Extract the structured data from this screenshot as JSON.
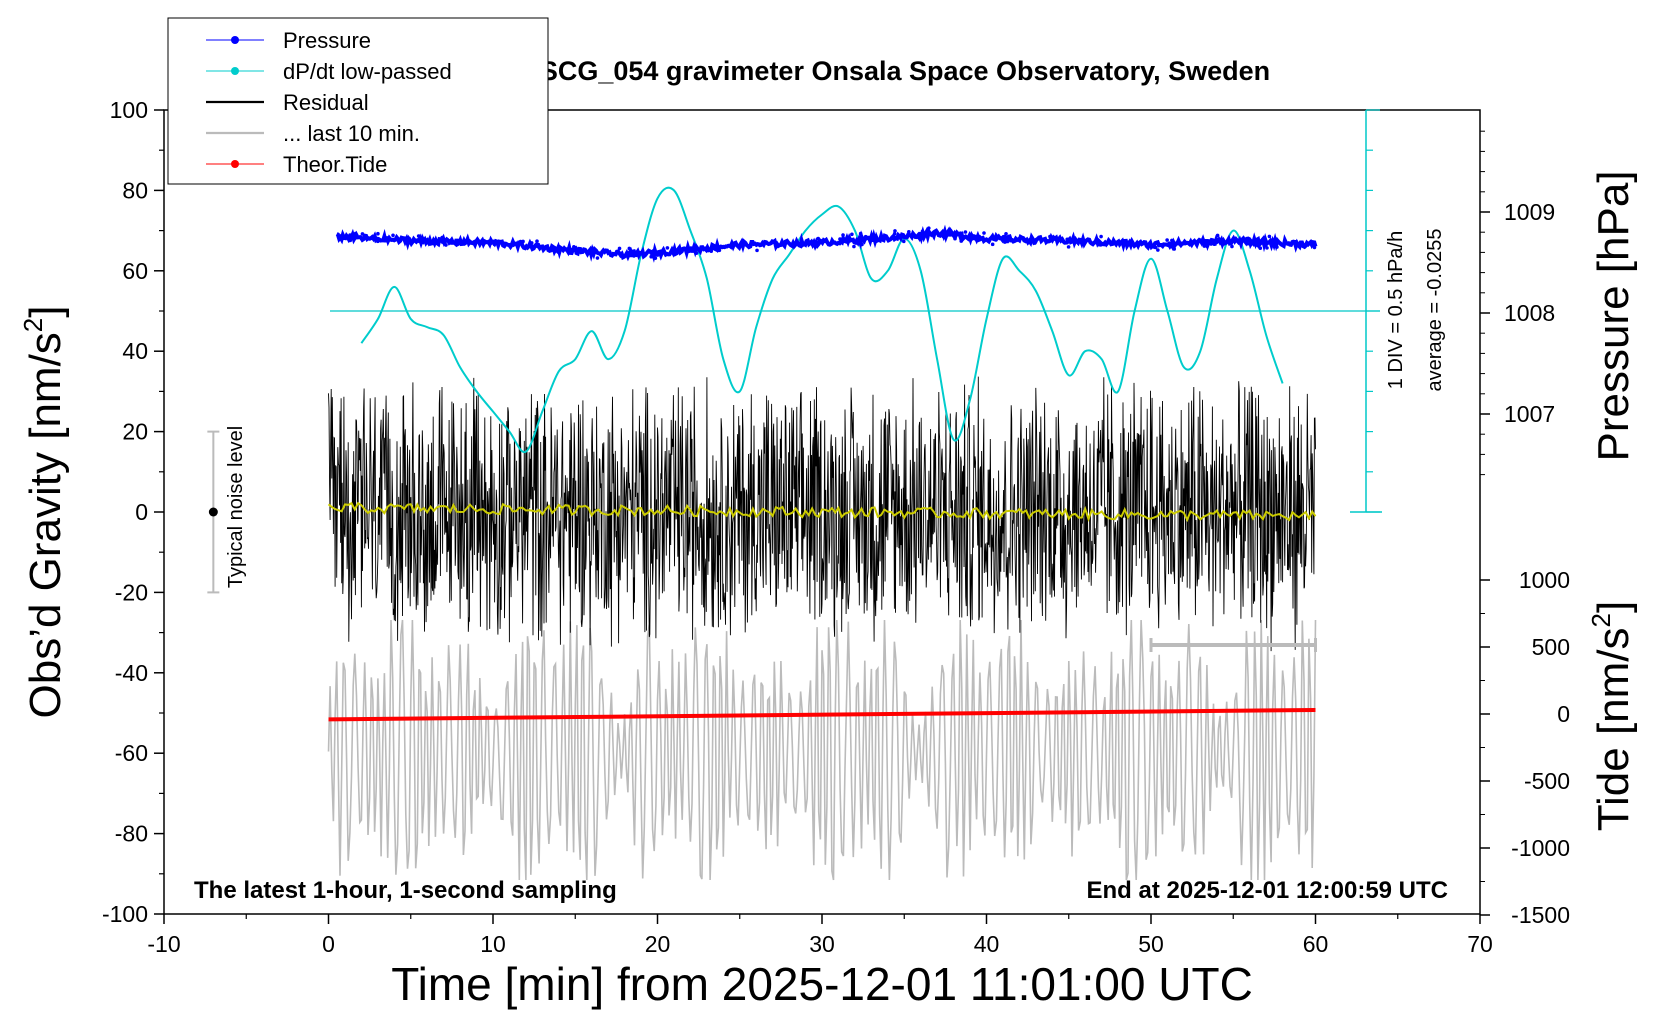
{
  "chart_data": {
    "type": "line",
    "title": "SCG_054 gravimeter Onsala Space Observatory, Sweden",
    "xlabel": "Time [min] from 2025-12-01 11:01:00 UTC",
    "ylabel": "Obs'd Gravity [nm/s²]",
    "ylabel_main": "Obs’d Gravity [nm/s",
    "ylabel_sup": "2",
    "ylabel_close": "]",
    "xlim": [
      -10,
      70
    ],
    "ylim": [
      -100,
      100
    ],
    "x_ticks": [
      "-10",
      "0",
      "10",
      "20",
      "30",
      "40",
      "50",
      "60",
      "70"
    ],
    "y_ticks": [
      "100",
      "80",
      "60",
      "40",
      "20",
      "0",
      "-20",
      "-40",
      "-60",
      "-80",
      "-100"
    ],
    "pressure_axis": {
      "label": "Pressure [hPa]",
      "ticks": [
        "1009",
        "1008",
        "1007"
      ],
      "tick_values": [
        1009,
        1008,
        1007
      ]
    },
    "tide_axis": {
      "label_main": "Tide [nm/s",
      "label_sup": "2",
      "label_close": "]",
      "ticks": [
        "1000",
        "500",
        "0",
        "-500",
        "-1000",
        "-1500"
      ],
      "tick_values": [
        1000,
        500,
        0,
        -500,
        -1000,
        -1500
      ]
    },
    "dpdt_scale": {
      "div_label": "1 DIV = 0.5 hPa/h",
      "average_label": "average = -0.0255"
    },
    "noise_label": "Typical noise level",
    "noise_level": {
      "center": 0,
      "low": -20,
      "high": 20,
      "x": -7
    },
    "footer_left": "The latest 1-hour, 1-second sampling",
    "footer_right": "End at 2025-12-01 12:00:59 UTC",
    "legend": [
      {
        "label": "Pressure",
        "color": "#0000ff",
        "style": "line-dot"
      },
      {
        "label": "dP/dt low-passed",
        "color": "#00cccc",
        "style": "line-dot"
      },
      {
        "label": "Residual",
        "color": "#000000",
        "style": "line"
      },
      {
        "label": "... last 10 min.",
        "color": "#bbbbbb",
        "style": "line"
      },
      {
        "label": "Theor.Tide",
        "color": "#ff0000",
        "style": "line-dot"
      }
    ],
    "series": [
      {
        "name": "Pressure",
        "color": "#0000ff",
        "x": [
          0.5,
          5,
          10,
          15,
          18,
          20,
          25,
          30,
          35,
          37,
          40,
          45,
          50,
          55,
          60
        ],
        "values": [
          68.5,
          67.5,
          67,
          65,
          64,
          64.5,
          66.5,
          67,
          68.5,
          69.5,
          68,
          67.5,
          66.5,
          67.5,
          66.5
        ]
      },
      {
        "name": "dP/dt low-passed",
        "color": "#00cccc",
        "x": [
          2,
          3,
          4,
          5,
          6,
          7,
          8,
          9,
          10,
          11,
          12,
          13,
          14,
          15,
          16,
          17,
          18,
          19,
          20,
          21,
          22,
          23,
          24,
          25,
          26,
          27,
          28,
          29,
          30,
          31,
          32,
          33,
          34,
          35,
          36,
          37,
          38,
          39,
          40,
          41,
          42,
          43,
          44,
          45,
          46,
          47,
          48,
          49,
          50,
          51,
          52,
          53,
          54,
          55,
          56,
          57,
          58
        ],
        "values": [
          42,
          48,
          56,
          48,
          46,
          44,
          36,
          30,
          25,
          20,
          15,
          25,
          35,
          38,
          45,
          38,
          45,
          64,
          78,
          80,
          70,
          58,
          38,
          30,
          46,
          58,
          64,
          70,
          74,
          76,
          70,
          58,
          60,
          68,
          60,
          38,
          18,
          28,
          48,
          63,
          60,
          55,
          45,
          34,
          40,
          38,
          30,
          50,
          63,
          50,
          36,
          40,
          58,
          70,
          60,
          44,
          32
        ]
      },
      {
        "name": "Residual",
        "color": "#000000",
        "amplitude": 35,
        "x_range": [
          0,
          60
        ]
      },
      {
        "name": "... last 10 min.",
        "color": "#bbbbbb",
        "amplitude": 1100,
        "axis": "tide",
        "x_range": [
          0,
          60
        ]
      },
      {
        "name": "Theor.Tide",
        "color": "#ff0000",
        "axis": "tide",
        "x": [
          0,
          60
        ],
        "values": [
          -40,
          30
        ]
      }
    ],
    "smoothed_residual": {
      "color": "#cccc00",
      "x": [
        0,
        60
      ],
      "values": [
        1,
        -1
      ]
    },
    "dpdt_zero_level": 50
  }
}
